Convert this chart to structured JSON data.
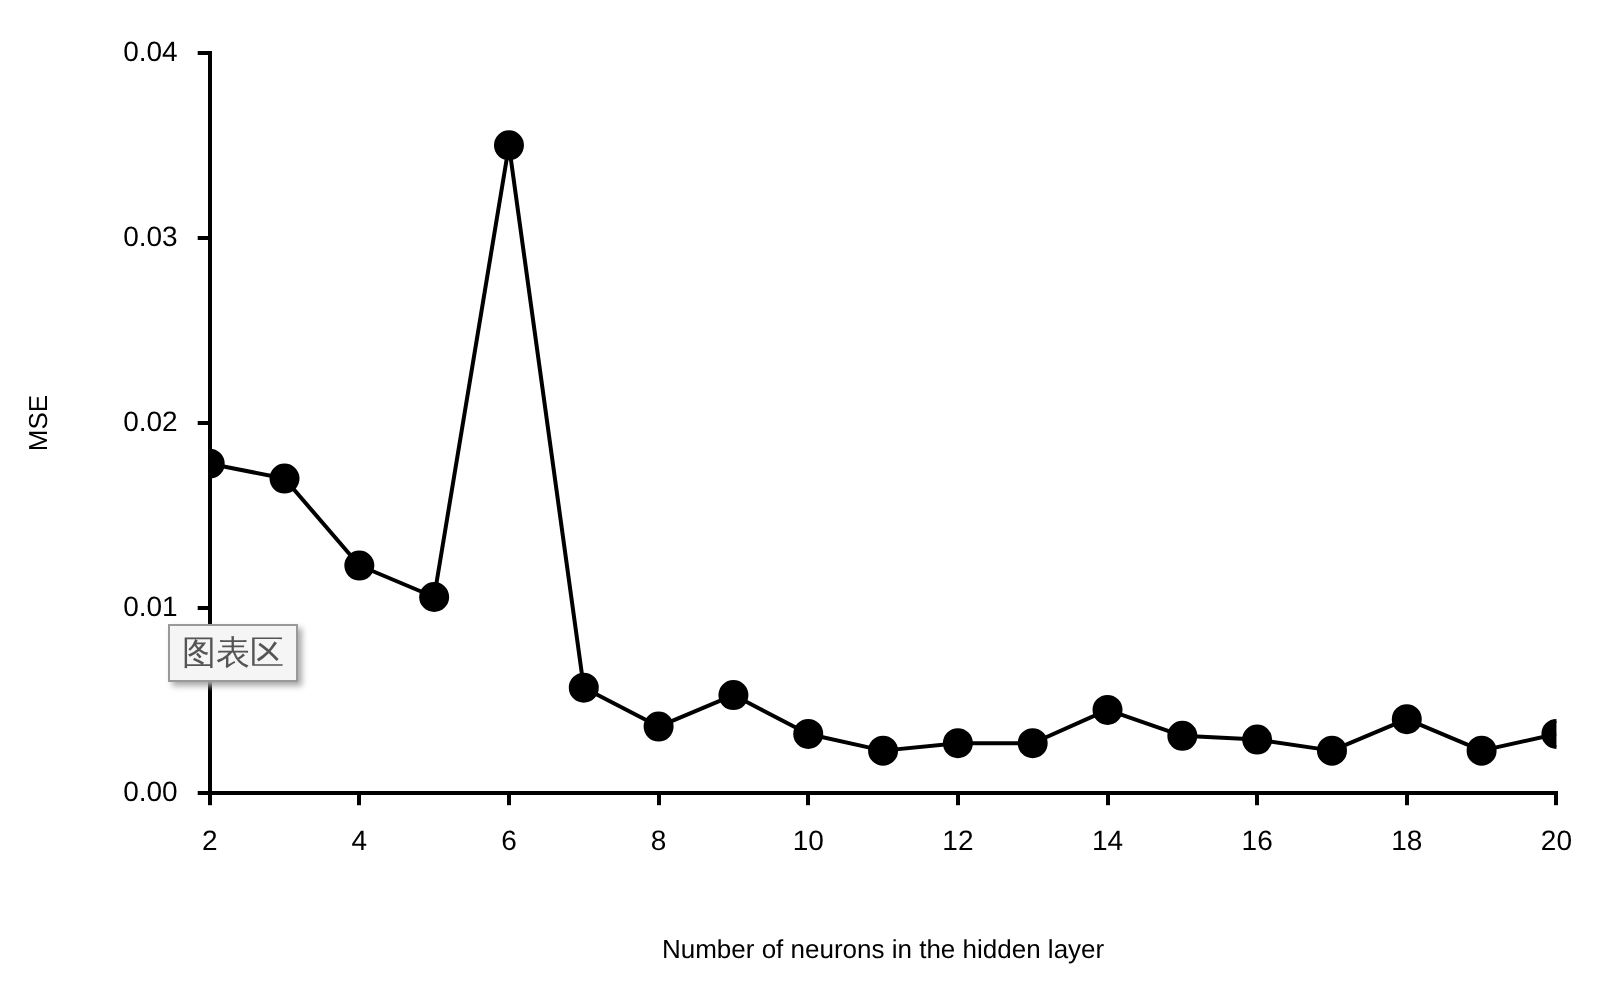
{
  "chart_data": {
    "type": "line",
    "xlabel": "Number of neurons in the hidden layer",
    "ylabel": "MSE",
    "x": [
      2,
      3,
      4,
      5,
      6,
      7,
      8,
      9,
      10,
      11,
      12,
      13,
      14,
      15,
      16,
      17,
      18,
      19,
      20
    ],
    "series": [
      {
        "color": "#000000",
        "values": [
          0.0178,
          0.017,
          0.0123,
          0.0106,
          0.035,
          0.0057,
          0.0036,
          0.0053,
          0.0032,
          0.0023,
          0.0027,
          0.0027,
          0.0045,
          0.0031,
          0.0029,
          0.0023,
          0.004,
          0.0023,
          0.0032
        ]
      }
    ],
    "xlim": [
      2,
      20
    ],
    "xticks": [
      2,
      4,
      6,
      8,
      10,
      12,
      14,
      16,
      18,
      20
    ],
    "ylim": [
      0,
      0.04
    ],
    "yticks": [
      {
        "value": 0,
        "label": "0.00"
      },
      {
        "value": 0.01,
        "label": "0.01"
      },
      {
        "value": 0.02,
        "label": "0.02"
      },
      {
        "value": 0.03,
        "label": "0.03"
      },
      {
        "value": 0.04,
        "label": "0.04"
      }
    ],
    "grid": false,
    "legend": false,
    "marker": "circle",
    "line_style": "solid",
    "annotations": [
      "图表区"
    ]
  }
}
